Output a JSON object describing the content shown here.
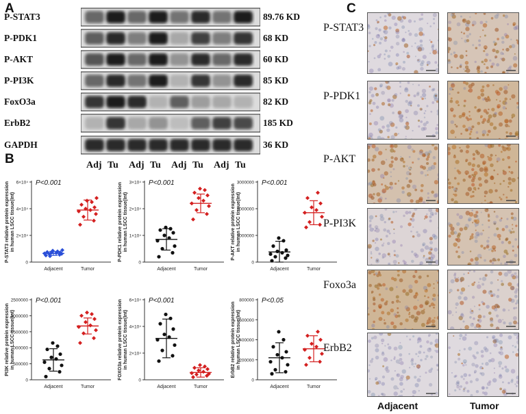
{
  "panel_letters": [
    "A",
    "B",
    "C"
  ],
  "blot": {
    "rows": [
      {
        "label": "P-STAT3",
        "kd": "89.76 KD",
        "bands": [
          0.55,
          0.9,
          0.55,
          0.9,
          0.5,
          0.85,
          0.5,
          0.9
        ]
      },
      {
        "label": "P-PDK1",
        "kd": "68 KD",
        "bands": [
          0.6,
          0.85,
          0.45,
          0.9,
          0.25,
          0.75,
          0.45,
          0.8
        ]
      },
      {
        "label": "P-AKT",
        "kd": "60 KD",
        "bands": [
          0.65,
          0.9,
          0.55,
          0.9,
          0.35,
          0.85,
          0.55,
          0.85
        ]
      },
      {
        "label": "P-PI3K",
        "kd": "85 KD",
        "bands": [
          0.55,
          0.85,
          0.5,
          0.9,
          0.2,
          0.8,
          0.35,
          0.85
        ]
      },
      {
        "label": "FoxO3a",
        "kd": "82 KD",
        "bands": [
          0.8,
          0.9,
          0.85,
          0.2,
          0.6,
          0.3,
          0.25,
          0.2
        ]
      },
      {
        "label": "ErbB2",
        "kd": "185 KD",
        "bands": [
          0.2,
          0.8,
          0.25,
          0.35,
          0.15,
          0.6,
          0.75,
          0.7
        ]
      },
      {
        "label": "GAPDH",
        "kd": "36 KD",
        "bands": [
          0.85,
          0.85,
          0.85,
          0.85,
          0.85,
          0.85,
          0.85,
          0.85
        ]
      }
    ],
    "lanes": [
      "Adj",
      "Tu",
      "Adj",
      "Tu",
      "Adj",
      "Tu",
      "Adj",
      "Tu"
    ]
  },
  "chart_data": [
    {
      "type": "scatter",
      "ylabel": "P-STAT3 relative protein expression in human LSCC tissue(Int)",
      "pval": "P<0.001",
      "categories": [
        "Adjacent",
        "Tumor"
      ],
      "ylim": [
        0,
        60000
      ],
      "ticks": [
        "0",
        "2×10⁴",
        "4×10⁴",
        "6×10⁴"
      ],
      "colors": [
        "#2a4fd8",
        "#d42020"
      ],
      "markers": [
        "diamond",
        "diamond"
      ],
      "mean": [
        6500,
        39000
      ],
      "sd": [
        1500,
        7500
      ],
      "series": [
        {
          "name": "Adjacent",
          "values": [
            5000,
            5500,
            6000,
            6200,
            6500,
            6800,
            7000,
            7200,
            7500,
            8000,
            8500,
            9000,
            4500
          ]
        },
        {
          "name": "Tumor",
          "values": [
            28000,
            31000,
            34000,
            36000,
            38000,
            39000,
            40000,
            41000,
            43000,
            45000,
            46000,
            48000
          ]
        }
      ]
    },
    {
      "type": "scatter",
      "ylabel": "P-PDK1 relative protein expression in human LSCC tissue(Int)",
      "pval": "P<0.001",
      "categories": [
        "Adjacent",
        "Tumor"
      ],
      "ylim": [
        0,
        30000
      ],
      "ticks": [
        "0",
        "1×10⁴",
        "2×10⁴",
        "3×10⁴"
      ],
      "colors": [
        "#111111",
        "#d42020"
      ],
      "markers": [
        "circle",
        "diamond"
      ],
      "mean": [
        8500,
        22000
      ],
      "sd": [
        4000,
        3500
      ],
      "series": [
        {
          "name": "Adjacent",
          "values": [
            2000,
            3500,
            5000,
            6000,
            8000,
            9000,
            10000,
            11000,
            12000,
            12500,
            13000
          ]
        },
        {
          "name": "Tumor",
          "values": [
            16000,
            18000,
            19500,
            21000,
            22000,
            23000,
            24000,
            25000,
            26000,
            27000,
            27500
          ]
        }
      ]
    },
    {
      "type": "scatter",
      "ylabel": "P-AKT relative protein expression in human LSCC tissue(Int)",
      "pval": "P<0.001",
      "categories": [
        "Adjacent",
        "Tumor"
      ],
      "ylim": [
        0,
        3000000
      ],
      "ticks": [
        "0",
        "1000000",
        "2000000",
        "3000000"
      ],
      "colors": [
        "#111111",
        "#d42020"
      ],
      "markers": [
        "circle",
        "diamond"
      ],
      "mean": [
        380000,
        1850000
      ],
      "sd": [
        400000,
        450000
      ],
      "series": [
        {
          "name": "Adjacent",
          "values": [
            50000,
            150000,
            200000,
            250000,
            300000,
            350000,
            400000,
            450000,
            600000,
            800000,
            900000
          ]
        },
        {
          "name": "Tumor",
          "values": [
            1300000,
            1400000,
            1500000,
            1700000,
            1850000,
            1950000,
            2050000,
            2200000,
            2400000,
            2600000
          ]
        }
      ]
    },
    {
      "type": "scatter",
      "ylabel": "PI3K relative protein expression in human LSCC tissue(Int)",
      "pval": "P<0.001",
      "categories": [
        "Adjacent",
        "Tumor"
      ],
      "ylim": [
        0,
        2500000
      ],
      "ticks": [
        "0",
        "500000",
        "1000000",
        "1500000",
        "2000000",
        "2500000"
      ],
      "colors": [
        "#111111",
        "#d42020"
      ],
      "markers": [
        "circle",
        "diamond"
      ],
      "mean": [
        620000,
        1680000
      ],
      "sd": [
        350000,
        250000
      ],
      "series": [
        {
          "name": "Adjacent",
          "values": [
            100000,
            250000,
            350000,
            450000,
            550000,
            650000,
            700000,
            800000,
            950000,
            1050000,
            1150000
          ]
        },
        {
          "name": "Tumor",
          "values": [
            1150000,
            1300000,
            1450000,
            1550000,
            1650000,
            1700000,
            1800000,
            1900000,
            2000000,
            2050000,
            2100000
          ]
        }
      ]
    },
    {
      "type": "scatter",
      "ylabel": "FOXO3a relative protein expression in human LSCC tissue(Int)",
      "pval": "P<0.001",
      "categories": [
        "Adjacent",
        "Tumor"
      ],
      "ylim": [
        0,
        60000
      ],
      "ticks": [
        "0",
        "2×10⁴",
        "4×10⁴",
        "6×10⁴"
      ],
      "colors": [
        "#111111",
        "#d42020"
      ],
      "markers": [
        "circle",
        "diamond"
      ],
      "mean": [
        31000,
        5500
      ],
      "sd": [
        14500,
        3500
      ],
      "series": [
        {
          "name": "Adjacent",
          "values": [
            14000,
            18000,
            22000,
            26000,
            30000,
            32000,
            34000,
            38000,
            42000,
            46000,
            49000
          ]
        },
        {
          "name": "Tumor",
          "values": [
            2000,
            3000,
            4000,
            4500,
            5000,
            6000,
            7000,
            8000,
            9000,
            10000,
            11000
          ]
        }
      ]
    },
    {
      "type": "scatter",
      "ylabel": "ErbB2 relative protein expression in human LSCC tissue(Int)",
      "pval": "P<0.05",
      "categories": [
        "Adjacent",
        "Tumor"
      ],
      "ylim": [
        0,
        800000
      ],
      "ticks": [
        "0",
        "200000",
        "400000",
        "600000",
        "800000"
      ],
      "colors": [
        "#111111",
        "#d42020"
      ],
      "markers": [
        "circle",
        "diamond"
      ],
      "mean": [
        220000,
        310000
      ],
      "sd": [
        150000,
        130000
      ],
      "series": [
        {
          "name": "Adjacent",
          "values": [
            60000,
            80000,
            100000,
            150000,
            180000,
            220000,
            250000,
            280000,
            330000,
            400000,
            480000
          ]
        },
        {
          "name": "Tumor",
          "values": [
            150000,
            180000,
            220000,
            260000,
            300000,
            330000,
            360000,
            400000,
            440000,
            480000
          ]
        }
      ]
    }
  ],
  "ihc": {
    "rows": [
      "P-STAT3",
      "P-PDK1",
      "P-AKT",
      "P-PI3K",
      "Foxo3a",
      "ErbB2"
    ],
    "cols": [
      "Adjacent",
      "Tumor"
    ],
    "stain": [
      [
        0.1,
        0.55
      ],
      [
        0.15,
        0.85
      ],
      [
        0.65,
        0.9
      ],
      [
        0.2,
        0.6
      ],
      [
        0.9,
        0.3
      ],
      [
        0.1,
        0.1
      ]
    ]
  }
}
